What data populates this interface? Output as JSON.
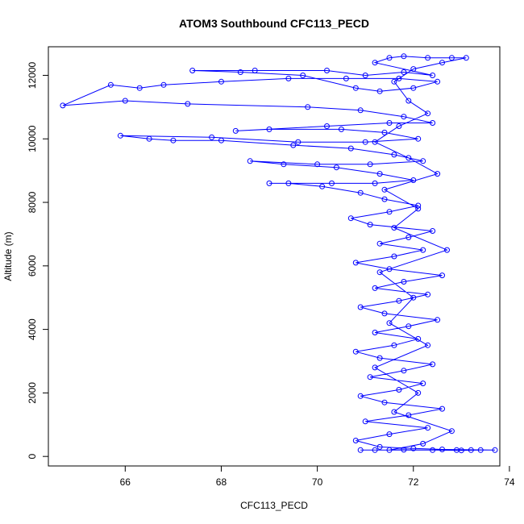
{
  "chart_data": {
    "type": "line",
    "title": "ATOM3 Southbound CFC113_PECD",
    "xlabel": "CFC113_PECD",
    "ylabel": "Altitude (m)",
    "xlim": [
      64.4,
      73.8
    ],
    "ylim": [
      -300,
      12900
    ],
    "xticks": [
      66,
      68,
      70,
      72,
      74
    ],
    "yticks": [
      0,
      2000,
      4000,
      6000,
      8000,
      10000,
      12000
    ],
    "xtick_labels": [
      "66",
      "68",
      "70",
      "72",
      "74"
    ],
    "ytick_labels": [
      "0",
      "2000",
      "4000",
      "6000",
      "8000",
      "10000",
      "12000"
    ],
    "grid": false,
    "series": [
      {
        "name": "CFC113_PECD",
        "color": "#0000ff",
        "marker": "open-circle",
        "points": [
          [
            70.9,
            200
          ],
          [
            71.2,
            200
          ],
          [
            71.8,
            210
          ],
          [
            72.4,
            200
          ],
          [
            73.0,
            190
          ],
          [
            73.4,
            200
          ],
          [
            73.7,
            200
          ],
          [
            72.6,
            220
          ],
          [
            72.0,
            250
          ],
          [
            71.3,
            300
          ],
          [
            70.8,
            500
          ],
          [
            71.5,
            700
          ],
          [
            72.3,
            900
          ],
          [
            71.0,
            1100
          ],
          [
            71.9,
            1300
          ],
          [
            72.6,
            1500
          ],
          [
            71.4,
            1700
          ],
          [
            70.9,
            1900
          ],
          [
            71.7,
            2100
          ],
          [
            72.2,
            2300
          ],
          [
            71.1,
            2500
          ],
          [
            71.8,
            2700
          ],
          [
            72.4,
            2900
          ],
          [
            71.3,
            3100
          ],
          [
            70.8,
            3300
          ],
          [
            71.6,
            3500
          ],
          [
            72.1,
            3700
          ],
          [
            71.2,
            3900
          ],
          [
            71.9,
            4100
          ],
          [
            72.5,
            4300
          ],
          [
            71.4,
            4500
          ],
          [
            70.9,
            4700
          ],
          [
            71.7,
            4900
          ],
          [
            72.3,
            5100
          ],
          [
            71.2,
            5300
          ],
          [
            71.8,
            5500
          ],
          [
            72.6,
            5700
          ],
          [
            71.5,
            5900
          ],
          [
            70.8,
            6100
          ],
          [
            71.6,
            6300
          ],
          [
            72.2,
            6500
          ],
          [
            71.3,
            6700
          ],
          [
            71.9,
            6900
          ],
          [
            72.4,
            7100
          ],
          [
            71.1,
            7300
          ],
          [
            70.7,
            7500
          ],
          [
            71.5,
            7700
          ],
          [
            72.1,
            7900
          ],
          [
            71.4,
            8100
          ],
          [
            70.9,
            8300
          ],
          [
            70.1,
            8500
          ],
          [
            69.4,
            8600
          ],
          [
            69.0,
            8600
          ],
          [
            70.3,
            8600
          ],
          [
            71.2,
            8600
          ],
          [
            72.0,
            8700
          ],
          [
            71.3,
            8900
          ],
          [
            70.4,
            9100
          ],
          [
            69.3,
            9200
          ],
          [
            68.6,
            9300
          ],
          [
            70.0,
            9200
          ],
          [
            71.1,
            9200
          ],
          [
            72.2,
            9300
          ],
          [
            71.6,
            9500
          ],
          [
            70.7,
            9700
          ],
          [
            69.5,
            9800
          ],
          [
            68.0,
            9950
          ],
          [
            67.0,
            9950
          ],
          [
            66.5,
            10000
          ],
          [
            65.9,
            10100
          ],
          [
            67.8,
            10050
          ],
          [
            69.6,
            9900
          ],
          [
            71.0,
            9900
          ],
          [
            72.1,
            10000
          ],
          [
            71.4,
            10200
          ],
          [
            70.5,
            10300
          ],
          [
            69.0,
            10300
          ],
          [
            68.3,
            10250
          ],
          [
            70.2,
            10400
          ],
          [
            71.5,
            10500
          ],
          [
            72.4,
            10500
          ],
          [
            71.8,
            10700
          ],
          [
            70.9,
            10900
          ],
          [
            69.8,
            11000
          ],
          [
            67.3,
            11100
          ],
          [
            66.0,
            11200
          ],
          [
            64.7,
            11050
          ],
          [
            65.7,
            11700
          ],
          [
            66.3,
            11600
          ],
          [
            66.8,
            11700
          ],
          [
            68.0,
            11800
          ],
          [
            69.4,
            11900
          ],
          [
            70.6,
            11900
          ],
          [
            71.7,
            11900
          ],
          [
            72.5,
            11800
          ],
          [
            72.0,
            11600
          ],
          [
            71.3,
            11500
          ],
          [
            70.8,
            11600
          ],
          [
            69.7,
            12000
          ],
          [
            68.4,
            12100
          ],
          [
            67.4,
            12150
          ],
          [
            68.7,
            12150
          ],
          [
            70.2,
            12150
          ],
          [
            71.0,
            12000
          ],
          [
            71.8,
            12100
          ],
          [
            72.4,
            12000
          ],
          [
            71.2,
            12400
          ],
          [
            71.5,
            12550
          ],
          [
            71.8,
            12600
          ],
          [
            72.3,
            12550
          ],
          [
            72.8,
            12550
          ],
          [
            73.1,
            12550
          ],
          [
            72.6,
            12400
          ],
          [
            72.0,
            12200
          ],
          [
            71.6,
            11800
          ],
          [
            71.9,
            11200
          ],
          [
            72.3,
            10800
          ],
          [
            71.7,
            10400
          ],
          [
            71.2,
            9900
          ],
          [
            71.9,
            9400
          ],
          [
            72.5,
            8900
          ],
          [
            71.4,
            8400
          ],
          [
            72.1,
            7800
          ],
          [
            71.6,
            7200
          ],
          [
            72.7,
            6500
          ],
          [
            71.3,
            5800
          ],
          [
            72.0,
            5000
          ],
          [
            71.5,
            4200
          ],
          [
            72.3,
            3500
          ],
          [
            71.2,
            2800
          ],
          [
            72.1,
            2000
          ],
          [
            71.6,
            1400
          ],
          [
            72.8,
            800
          ],
          [
            72.2,
            400
          ],
          [
            71.5,
            200
          ],
          [
            72.9,
            200
          ],
          [
            73.2,
            200
          ]
        ]
      }
    ]
  }
}
